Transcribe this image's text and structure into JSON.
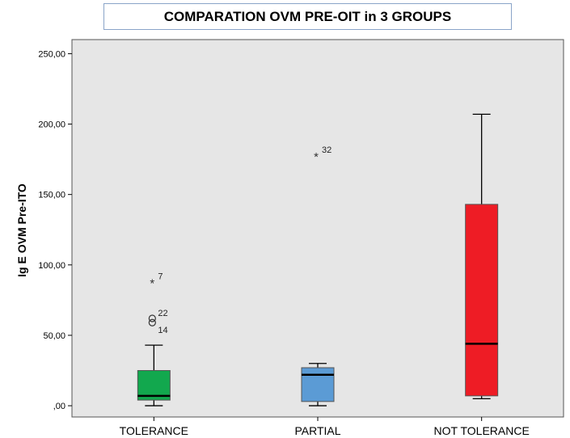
{
  "chart_data": {
    "type": "boxplot",
    "title": "COMPARATION OVM PRE-OIT in 3 GROUPS",
    "xlabel": "",
    "ylabel": "Ig E OVM Pre-ITO",
    "ylim": [
      -8,
      260
    ],
    "yticks": [
      0,
      50,
      100,
      150,
      200,
      250
    ],
    "ytick_labels": [
      ",00",
      "50,00",
      "100,00",
      "150,00",
      "200,00",
      "250,00"
    ],
    "grid": false,
    "categories": [
      "TOLERANCE",
      "PARTIAL",
      "NOT TOLERANCE"
    ],
    "boxes": [
      {
        "category": "TOLERANCE",
        "min": 0,
        "q1": 4,
        "median": 7,
        "q3": 25,
        "max": 43,
        "color": "#12a84e",
        "outliers": [
          {
            "value": 88,
            "label": "7",
            "marker": "star"
          },
          {
            "value": 62,
            "label": "22",
            "marker": "circle"
          },
          {
            "value": 59,
            "label": "",
            "marker": "circle"
          },
          {
            "value": 50,
            "label": "14",
            "marker": "none"
          }
        ]
      },
      {
        "category": "PARTIAL",
        "min": 0,
        "q1": 3,
        "median": 22,
        "q3": 27,
        "max": 30,
        "color": "#5b9bd5",
        "outliers": [
          {
            "value": 178,
            "label": "32",
            "marker": "star"
          }
        ]
      },
      {
        "category": "NOT TOLERANCE",
        "min": 5,
        "q1": 7,
        "median": 44,
        "q3": 143,
        "max": 207,
        "color": "#ee1c25",
        "outliers": []
      }
    ]
  },
  "colors": {
    "plot_background": "#e6e6e6",
    "title_border": "#8aa4c8"
  }
}
